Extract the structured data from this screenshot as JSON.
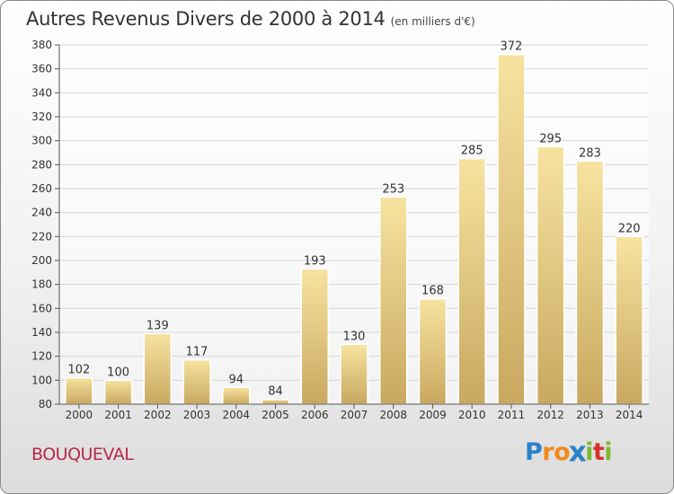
{
  "title": "Autres Revenus Divers de 2000 à 2014",
  "subtitle": "(en milliers d'€)",
  "place": "BOUQUEVAL",
  "logo": {
    "letters": [
      "P",
      "r",
      "o",
      "x",
      "i",
      "t",
      "i"
    ],
    "colors": [
      "#2a82c9",
      "#f08a1c",
      "#f08a1c",
      "#2a82c9",
      "#7cb82f",
      "#d8312a",
      "#7cb82f"
    ]
  },
  "chart_data": {
    "type": "bar",
    "categories": [
      "2000",
      "2001",
      "2002",
      "2003",
      "2004",
      "2005",
      "2006",
      "2007",
      "2008",
      "2009",
      "2010",
      "2011",
      "2012",
      "2013",
      "2014"
    ],
    "values": [
      102,
      100,
      139,
      117,
      94,
      84,
      193,
      130,
      253,
      168,
      285,
      372,
      295,
      283,
      220
    ],
    "ylim": [
      80,
      380
    ],
    "ytick_step": 20,
    "grid": true,
    "bar_color_top": "#f7e3a0",
    "bar_color_bottom": "#c9a860",
    "title": "Autres Revenus Divers de 2000 à 2014",
    "xlabel": "",
    "ylabel": ""
  }
}
